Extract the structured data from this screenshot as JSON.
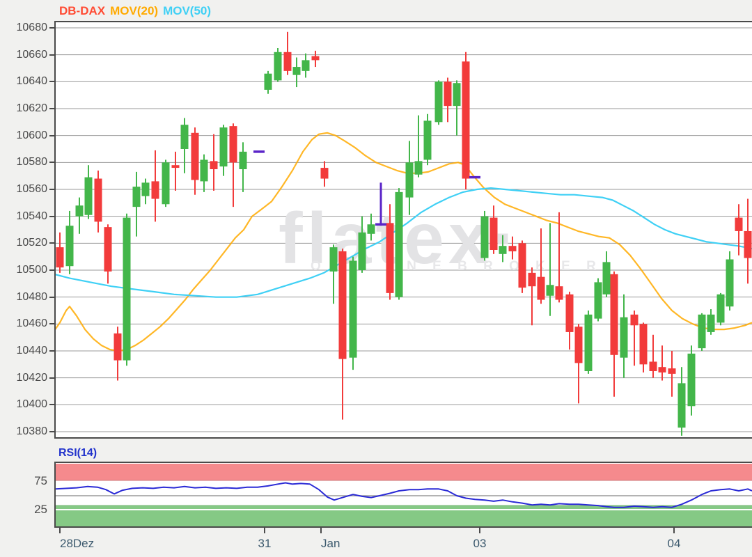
{
  "header": {
    "symbol": "DB-DAX",
    "mov20_label": "MOV(20)",
    "mov50_label": "MOV(50)"
  },
  "watermark": {
    "text": "flatex·",
    "subtext": "O N L I N E   B R O K E R"
  },
  "colors": {
    "symbol": "#ff4b33",
    "mov20": "#ffaa00",
    "mov50": "#3fd0f5",
    "up": "#43b64a",
    "down": "#f23b3b",
    "grid": "#9a9a9a",
    "border": "#4a4a4a",
    "marker": "#5a24c8",
    "rsi_line": "#2a2ad6",
    "rsi_upper_band": "#f58a8d",
    "rsi_lower_band": "#85c985",
    "plot_bg": "#ffffff",
    "page_bg": "#f1f1ef",
    "date_text": "#3d5a6e",
    "rsi_label": "#2233cc"
  },
  "chart_data": {
    "type": "candlestick",
    "title": "DB-DAX",
    "ylim": [
      10380,
      10680
    ],
    "y_step": 20,
    "y_labels": [
      "10680",
      "10660",
      "10640",
      "10620",
      "10600",
      "10580",
      "10560",
      "10540",
      "10520",
      "10500",
      "10480",
      "10460",
      "10440",
      "10420",
      "10400",
      "10380"
    ],
    "x_ticks": [
      {
        "label": "28Dez",
        "x": 86,
        "align": "left"
      },
      {
        "label": "31",
        "x": 380,
        "align": "center"
      },
      {
        "label": "Jan",
        "x": 461,
        "align": "left"
      },
      {
        "label": "03",
        "x": 689,
        "align": "center"
      },
      {
        "label": "04",
        "x": 968,
        "align": "center"
      }
    ],
    "candles": [
      [
        86,
        10517,
        10528,
        10498,
        10502
      ],
      [
        100,
        10503,
        10544,
        10497,
        10533
      ],
      [
        114,
        10540,
        10554,
        10527,
        10548
      ],
      [
        127,
        10541,
        10578,
        10538,
        10569
      ],
      [
        141,
        10568,
        10574,
        10528,
        10536
      ],
      [
        155,
        10532,
        10534,
        10490,
        10499
      ],
      [
        169,
        10453,
        10458,
        10418,
        10433
      ],
      [
        182,
        10433,
        10542,
        10429,
        10539
      ],
      [
        196,
        10547,
        10573,
        10525,
        10562
      ],
      [
        209,
        10555,
        10568,
        10549,
        10565
      ],
      [
        223,
        10566,
        10589,
        10536,
        10553
      ],
      [
        238,
        10549,
        10582,
        10547,
        10580
      ],
      [
        252,
        10578,
        10588,
        10559,
        10576
      ],
      [
        265,
        10590,
        10613,
        10572,
        10608
      ],
      [
        280,
        10602,
        10606,
        10556,
        10567
      ],
      [
        293,
        10566,
        10586,
        10558,
        10582
      ],
      [
        307,
        10581,
        10601,
        10559,
        10575
      ],
      [
        321,
        10577,
        10608,
        10570,
        10606
      ],
      [
        335,
        10607,
        10609,
        10547,
        10580
      ],
      [
        349,
        10575,
        10595,
        10558,
        10588
      ],
      [
        385,
        10634,
        10648,
        10631,
        10646
      ],
      [
        399,
        10641,
        10665,
        10640,
        10662
      ],
      [
        413,
        10662,
        10677,
        10645,
        10648
      ],
      [
        426,
        10645,
        10658,
        10636,
        10651
      ],
      [
        439,
        10648,
        10661,
        10643,
        10656
      ],
      [
        453,
        10659,
        10663,
        10651,
        10656
      ],
      [
        466,
        10576,
        10581,
        10562,
        10568
      ],
      [
        479,
        10499,
        10519,
        10475,
        10517
      ],
      [
        492,
        10514,
        10516,
        10389,
        10434
      ],
      [
        507,
        10435,
        10510,
        10426,
        10507
      ],
      [
        520,
        10500,
        10540,
        10498,
        10528
      ],
      [
        533,
        10527,
        10542,
        10522,
        10534
      ],
      [
        560,
        10535,
        10549,
        10478,
        10483
      ],
      [
        573,
        10480,
        10561,
        10478,
        10558
      ],
      [
        588,
        10554,
        10596,
        10541,
        10580
      ],
      [
        601,
        10571,
        10615,
        10569,
        10581
      ],
      [
        614,
        10582,
        10616,
        10578,
        10611
      ],
      [
        630,
        10610,
        10641,
        10608,
        10640
      ],
      [
        643,
        10640,
        10643,
        10610,
        10622
      ],
      [
        656,
        10622,
        10641,
        10600,
        10639
      ],
      [
        669,
        10655,
        10662,
        10560,
        10568
      ],
      [
        696,
        10509,
        10544,
        10507,
        10540
      ],
      [
        709,
        10539,
        10548,
        10512,
        10515
      ],
      [
        722,
        10512,
        10526,
        10506,
        10518
      ],
      [
        736,
        10518,
        10525,
        10508,
        10514
      ],
      [
        750,
        10520,
        10522,
        10483,
        10487
      ],
      [
        764,
        10498,
        10502,
        10459,
        10488
      ],
      [
        777,
        10495,
        10531,
        10475,
        10478
      ],
      [
        790,
        10481,
        10535,
        10466,
        10489
      ],
      [
        803,
        10488,
        10543,
        10476,
        10478
      ],
      [
        818,
        10482,
        10484,
        10441,
        10454
      ],
      [
        831,
        10458,
        10460,
        10401,
        10431
      ],
      [
        845,
        10425,
        10470,
        10423,
        10467
      ],
      [
        859,
        10464,
        10494,
        10462,
        10491
      ],
      [
        871,
        10482,
        10514,
        10480,
        10506
      ],
      [
        882,
        10497,
        10499,
        10406,
        10437
      ],
      [
        896,
        10435,
        10482,
        10420,
        10465
      ],
      [
        911,
        10467,
        10470,
        10429,
        10459
      ],
      [
        924,
        10460,
        10461,
        10424,
        10430
      ],
      [
        938,
        10432,
        10452,
        10420,
        10425
      ],
      [
        951,
        10428,
        10444,
        10418,
        10424
      ],
      [
        965,
        10427,
        10440,
        10406,
        10423
      ],
      [
        979,
        10383,
        10428,
        10377,
        10416
      ],
      [
        993,
        10399,
        10444,
        10392,
        10438
      ],
      [
        1008,
        10442,
        10468,
        10440,
        10467
      ],
      [
        1021,
        10454,
        10471,
        10452,
        10467
      ],
      [
        1035,
        10461,
        10483,
        10459,
        10482
      ],
      [
        1048,
        10473,
        10514,
        10470,
        10508
      ],
      [
        1061,
        10539,
        10549,
        10511,
        10529
      ],
      [
        1074,
        10529,
        10553,
        10490,
        10509
      ]
    ],
    "mov20": [
      [
        78,
        10455
      ],
      [
        86,
        10461
      ],
      [
        95,
        10470
      ],
      [
        100,
        10473
      ],
      [
        110,
        10466
      ],
      [
        122,
        10456
      ],
      [
        134,
        10449
      ],
      [
        146,
        10444
      ],
      [
        158,
        10441
      ],
      [
        170,
        10440
      ],
      [
        182,
        10441
      ],
      [
        194,
        10444
      ],
      [
        206,
        10448
      ],
      [
        218,
        10453
      ],
      [
        230,
        10458
      ],
      [
        242,
        10464
      ],
      [
        254,
        10471
      ],
      [
        266,
        10478
      ],
      [
        278,
        10486
      ],
      [
        290,
        10493
      ],
      [
        302,
        10500
      ],
      [
        314,
        10508
      ],
      [
        326,
        10516
      ],
      [
        338,
        10524
      ],
      [
        350,
        10530
      ],
      [
        362,
        10540
      ],
      [
        375,
        10545
      ],
      [
        390,
        10551
      ],
      [
        405,
        10562
      ],
      [
        420,
        10574
      ],
      [
        435,
        10588
      ],
      [
        448,
        10597
      ],
      [
        458,
        10601
      ],
      [
        470,
        10602
      ],
      [
        482,
        10600
      ],
      [
        495,
        10596
      ],
      [
        510,
        10591
      ],
      [
        525,
        10585
      ],
      [
        540,
        10580
      ],
      [
        555,
        10577
      ],
      [
        570,
        10574
      ],
      [
        585,
        10572
      ],
      [
        600,
        10572
      ],
      [
        615,
        10573
      ],
      [
        630,
        10576
      ],
      [
        645,
        10579
      ],
      [
        658,
        10580
      ],
      [
        668,
        10578
      ],
      [
        680,
        10570
      ],
      [
        695,
        10561
      ],
      [
        710,
        10554
      ],
      [
        725,
        10549
      ],
      [
        740,
        10546
      ],
      [
        755,
        10543
      ],
      [
        770,
        10540
      ],
      [
        785,
        10537
      ],
      [
        800,
        10535
      ],
      [
        815,
        10532
      ],
      [
        830,
        10529
      ],
      [
        845,
        10527
      ],
      [
        860,
        10525
      ],
      [
        875,
        10524
      ],
      [
        890,
        10519
      ],
      [
        905,
        10511
      ],
      [
        920,
        10501
      ],
      [
        935,
        10490
      ],
      [
        950,
        10479
      ],
      [
        965,
        10470
      ],
      [
        980,
        10464
      ],
      [
        995,
        10460
      ],
      [
        1010,
        10457
      ],
      [
        1025,
        10456
      ],
      [
        1040,
        10456
      ],
      [
        1055,
        10457
      ],
      [
        1070,
        10459
      ],
      [
        1080,
        10461
      ]
    ],
    "mov50": [
      [
        78,
        10497
      ],
      [
        100,
        10494
      ],
      [
        130,
        10491
      ],
      [
        160,
        10488
      ],
      [
        190,
        10486
      ],
      [
        220,
        10484
      ],
      [
        250,
        10482
      ],
      [
        280,
        10481
      ],
      [
        310,
        10480
      ],
      [
        340,
        10480
      ],
      [
        370,
        10482
      ],
      [
        395,
        10486
      ],
      [
        420,
        10490
      ],
      [
        445,
        10494
      ],
      [
        465,
        10498
      ],
      [
        485,
        10504
      ],
      [
        505,
        10510
      ],
      [
        525,
        10516
      ],
      [
        545,
        10521
      ],
      [
        565,
        10528
      ],
      [
        585,
        10535
      ],
      [
        605,
        10543
      ],
      [
        625,
        10549
      ],
      [
        645,
        10554
      ],
      [
        665,
        10558
      ],
      [
        685,
        10560
      ],
      [
        705,
        10561
      ],
      [
        725,
        10560
      ],
      [
        745,
        10559
      ],
      [
        765,
        10558
      ],
      [
        785,
        10557
      ],
      [
        805,
        10556
      ],
      [
        825,
        10556
      ],
      [
        845,
        10555
      ],
      [
        865,
        10554
      ],
      [
        880,
        10552
      ],
      [
        895,
        10548
      ],
      [
        910,
        10544
      ],
      [
        925,
        10539
      ],
      [
        940,
        10534
      ],
      [
        955,
        10530
      ],
      [
        970,
        10527
      ],
      [
        985,
        10525
      ],
      [
        1000,
        10523
      ],
      [
        1015,
        10521
      ],
      [
        1030,
        10520
      ],
      [
        1045,
        10519
      ],
      [
        1060,
        10518
      ],
      [
        1080,
        10516
      ]
    ],
    "markers": [
      {
        "x": 372,
        "price": 10588,
        "type": "dash"
      },
      {
        "x": 547,
        "price": 10534,
        "type": "cross",
        "line_top": 10565,
        "line_bottom": 10533
      },
      {
        "x": 682,
        "price": 10569,
        "type": "dash"
      }
    ],
    "rsi": {
      "label": "RSI(14)",
      "upper_label": "75",
      "lower_label": "25",
      "upper": 75,
      "lower": 25,
      "points": [
        [
          80,
          61
        ],
        [
          96,
          62
        ],
        [
          110,
          63
        ],
        [
          126,
          65
        ],
        [
          140,
          64
        ],
        [
          152,
          60
        ],
        [
          164,
          53
        ],
        [
          176,
          59
        ],
        [
          190,
          62
        ],
        [
          205,
          63
        ],
        [
          220,
          62
        ],
        [
          235,
          64
        ],
        [
          250,
          63
        ],
        [
          265,
          65
        ],
        [
          280,
          63
        ],
        [
          295,
          64
        ],
        [
          310,
          62
        ],
        [
          325,
          63
        ],
        [
          340,
          62
        ],
        [
          355,
          64
        ],
        [
          370,
          64
        ],
        [
          385,
          66
        ],
        [
          399,
          69
        ],
        [
          410,
          71
        ],
        [
          420,
          69
        ],
        [
          432,
          70
        ],
        [
          445,
          69
        ],
        [
          458,
          60
        ],
        [
          470,
          48
        ],
        [
          480,
          43
        ],
        [
          492,
          47
        ],
        [
          507,
          52
        ],
        [
          520,
          49
        ],
        [
          533,
          47
        ],
        [
          545,
          50
        ],
        [
          560,
          54
        ],
        [
          573,
          58
        ],
        [
          588,
          60
        ],
        [
          601,
          60
        ],
        [
          614,
          61
        ],
        [
          630,
          61
        ],
        [
          643,
          58
        ],
        [
          656,
          50
        ],
        [
          669,
          46
        ],
        [
          682,
          44
        ],
        [
          696,
          43
        ],
        [
          709,
          41
        ],
        [
          722,
          43
        ],
        [
          736,
          40
        ],
        [
          750,
          38
        ],
        [
          764,
          35
        ],
        [
          777,
          36
        ],
        [
          790,
          35
        ],
        [
          803,
          37
        ],
        [
          818,
          36
        ],
        [
          831,
          36
        ],
        [
          845,
          35
        ],
        [
          859,
          34
        ],
        [
          871,
          32
        ],
        [
          882,
          31
        ],
        [
          896,
          31
        ],
        [
          911,
          33
        ],
        [
          924,
          32
        ],
        [
          938,
          31
        ],
        [
          951,
          32
        ],
        [
          965,
          31
        ],
        [
          979,
          36
        ],
        [
          993,
          43
        ],
        [
          1008,
          52
        ],
        [
          1021,
          58
        ],
        [
          1035,
          60
        ],
        [
          1048,
          61
        ],
        [
          1061,
          58
        ],
        [
          1074,
          61
        ],
        [
          1080,
          58
        ]
      ]
    }
  }
}
